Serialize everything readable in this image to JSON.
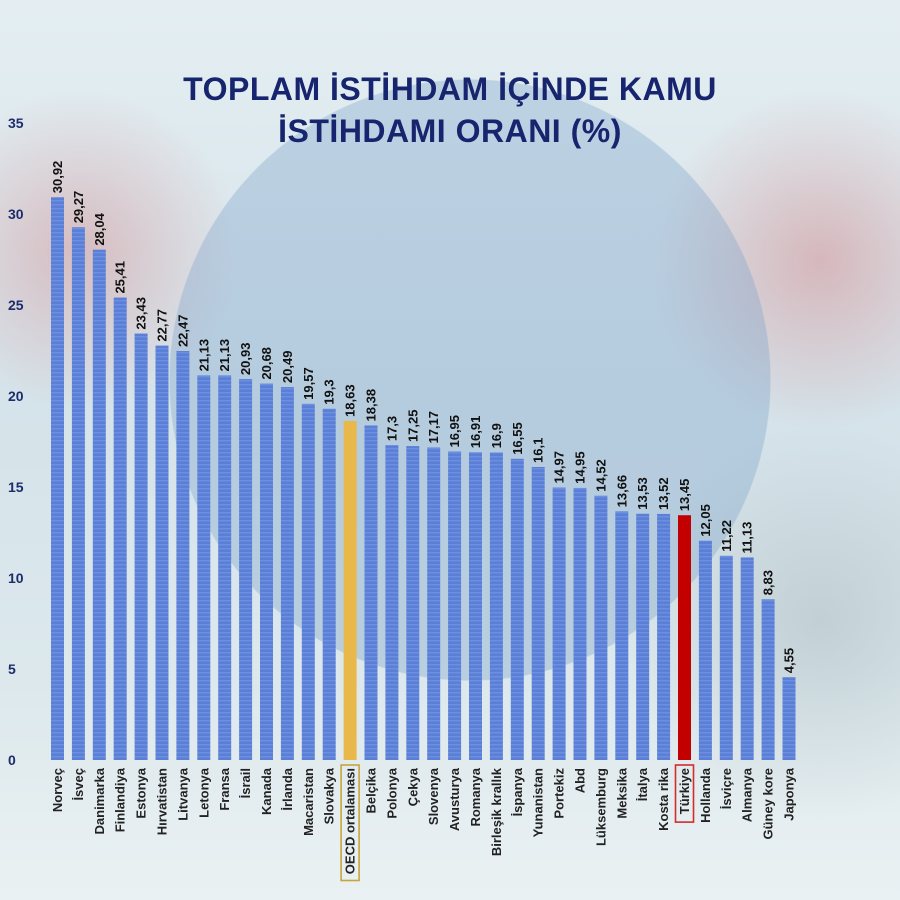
{
  "chart_data": {
    "type": "bar",
    "title_lines": [
      "TOPLAM İSTİHDAM İÇİNDE KAMU",
      "İSTİHDAMI ORANI (%)"
    ],
    "categories": [
      "Norveç",
      "İsveç",
      "Danimarka",
      "Finlandiya",
      "Estonya",
      "Hırvatistan",
      "Litvanya",
      "Letonya",
      "Fransa",
      "İsrail",
      "Kanada",
      "İrlanda",
      "Macaristan",
      "Slovakya",
      "OECD ortalaması",
      "Belçika",
      "Polonya",
      "Çekya",
      "Slovenya",
      "Avusturya",
      "Romanya",
      "Birleşik krallık",
      "İspanya",
      "Yunanistan",
      "Portekiz",
      "Abd",
      "Lüksemburg",
      "Meksika",
      "İtalya",
      "Kosta rika",
      "Türkiye",
      "Hollanda",
      "İsviçre",
      "Almanya",
      "Güney kore",
      "Japonya"
    ],
    "values": [
      30.92,
      29.27,
      28.04,
      25.41,
      23.43,
      22.77,
      22.47,
      21.13,
      21.13,
      20.93,
      20.68,
      20.49,
      19.57,
      19.3,
      18.63,
      18.38,
      17.3,
      17.25,
      17.17,
      16.95,
      16.91,
      16.9,
      16.55,
      16.1,
      14.97,
      14.95,
      14.52,
      13.66,
      13.53,
      13.52,
      13.45,
      12.05,
      11.22,
      11.13,
      8.83,
      4.55
    ],
    "value_labels": [
      "30,92",
      "29,27",
      "28,04",
      "25,41",
      "23,43",
      "22,77",
      "22,47",
      "21,13",
      "21,13",
      "20,93",
      "20,68",
      "20,49",
      "19,57",
      "19,3",
      "18,63",
      "18,38",
      "17,3",
      "17,25",
      "17,17",
      "16,95",
      "16,91",
      "16,9",
      "16,55",
      "16,1",
      "14,97",
      "14,95",
      "14,52",
      "13,66",
      "13,53",
      "13,52",
      "13,45",
      "12,05",
      "11,22",
      "11,13",
      "8,83",
      "4,55"
    ],
    "yticks": [
      0,
      5,
      10,
      15,
      20,
      25,
      30,
      35
    ],
    "ylim": [
      0,
      35
    ],
    "xlabel": "",
    "ylabel": "",
    "highlights": {
      "OECD ortalaması": "average",
      "Türkiye": "focus"
    },
    "colors": {
      "bar": "#5b7fd6",
      "bar_stripe": "#6d8fe0",
      "average": "#e8b84a",
      "focus": "#c30000",
      "focus_box": "#d42b2b",
      "average_box": "#c9a43c"
    }
  }
}
